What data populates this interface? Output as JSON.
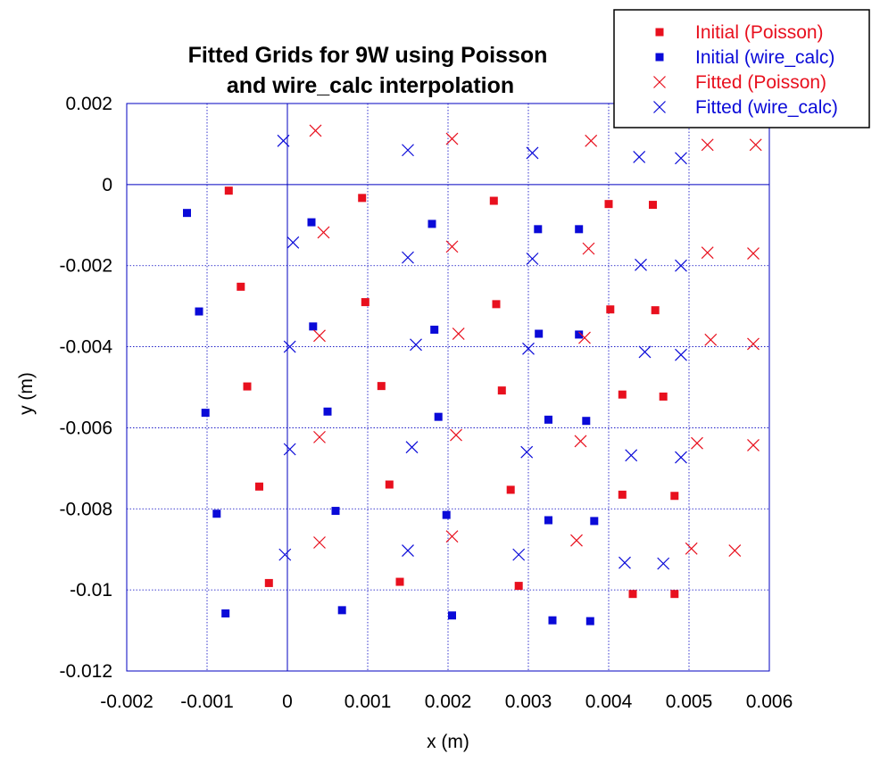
{
  "chart_data": {
    "type": "scatter",
    "title_lines": [
      "Fitted Grids for 9W using Poisson",
      "and wire_calc interpolation"
    ],
    "xlabel": "x (m)",
    "ylabel": "y (m)",
    "xlim": [
      -0.002,
      0.006
    ],
    "ylim": [
      -0.012,
      0.002
    ],
    "grid": true,
    "legend_position": "top-right",
    "x_ticks": [
      -0.002,
      -0.001,
      0,
      0.001,
      0.002,
      0.003,
      0.004,
      0.005,
      0.006
    ],
    "x_tick_labels": [
      "-0.002",
      "-0.001",
      "0",
      "0.001",
      "0.002",
      "0.003",
      "0.004",
      "0.005",
      "0.006"
    ],
    "y_ticks": [
      0.002,
      0,
      -0.002,
      -0.004,
      -0.006,
      -0.008,
      -0.01,
      -0.012
    ],
    "y_tick_labels": [
      "0.002",
      "0",
      "-0.002",
      "-0.004",
      "-0.006",
      "-0.008",
      "-0.01",
      "-0.012"
    ],
    "series": [
      {
        "name": "Initial (Poisson)",
        "marker": "square",
        "color": "#e8101e",
        "points": [
          [
            -0.00073,
            -0.00015
          ],
          [
            0.00093,
            -0.00033
          ],
          [
            0.00257,
            -0.0004
          ],
          [
            0.004,
            -0.00048
          ],
          [
            0.00455,
            -0.0005
          ],
          [
            -0.00058,
            -0.00252
          ],
          [
            0.00097,
            -0.0029
          ],
          [
            0.0026,
            -0.00295
          ],
          [
            0.00402,
            -0.00308
          ],
          [
            0.00458,
            -0.0031
          ],
          [
            -0.0005,
            -0.00498
          ],
          [
            0.00117,
            -0.00497
          ],
          [
            0.00267,
            -0.00508
          ],
          [
            0.00417,
            -0.00518
          ],
          [
            0.00468,
            -0.00523
          ],
          [
            -0.00035,
            -0.00745
          ],
          [
            0.00127,
            -0.0074
          ],
          [
            0.00278,
            -0.00753
          ],
          [
            0.00417,
            -0.00765
          ],
          [
            0.00482,
            -0.00768
          ],
          [
            -0.00023,
            -0.00983
          ],
          [
            0.0014,
            -0.0098
          ],
          [
            0.00288,
            -0.0099
          ],
          [
            0.0043,
            -0.0101
          ],
          [
            0.00482,
            -0.0101
          ]
        ]
      },
      {
        "name": "Initial (wire_calc)",
        "marker": "square",
        "color": "#0a0ad8",
        "points": [
          [
            -0.00125,
            -0.0007
          ],
          [
            0.0003,
            -0.00093
          ],
          [
            0.0018,
            -0.00097
          ],
          [
            0.00312,
            -0.0011
          ],
          [
            0.00363,
            -0.0011
          ],
          [
            -0.0011,
            -0.00313
          ],
          [
            0.00032,
            -0.0035
          ],
          [
            0.00183,
            -0.00358
          ],
          [
            0.00313,
            -0.00368
          ],
          [
            0.00363,
            -0.0037
          ],
          [
            -0.00102,
            -0.00563
          ],
          [
            0.0005,
            -0.0056
          ],
          [
            0.00188,
            -0.00573
          ],
          [
            0.00325,
            -0.0058
          ],
          [
            0.00372,
            -0.00583
          ],
          [
            -0.00088,
            -0.00812
          ],
          [
            0.0006,
            -0.00805
          ],
          [
            0.00198,
            -0.00815
          ],
          [
            0.00325,
            -0.00828
          ],
          [
            0.00382,
            -0.0083
          ],
          [
            -0.00077,
            -0.01058
          ],
          [
            0.00068,
            -0.0105
          ],
          [
            0.00205,
            -0.01063
          ],
          [
            0.0033,
            -0.01075
          ],
          [
            0.00377,
            -0.01077
          ]
        ]
      },
      {
        "name": "Fitted (Poisson)",
        "marker": "x",
        "color": "#e8101e",
        "points": [
          [
            0.00035,
            0.00133
          ],
          [
            0.00205,
            0.00113
          ],
          [
            0.00378,
            0.00108
          ],
          [
            0.00523,
            0.00098
          ],
          [
            0.00583,
            0.00098
          ],
          [
            0.00045,
            -0.00118
          ],
          [
            0.00205,
            -0.00153
          ],
          [
            0.00375,
            -0.00158
          ],
          [
            0.00523,
            -0.00168
          ],
          [
            0.0058,
            -0.0017
          ],
          [
            0.0004,
            -0.00373
          ],
          [
            0.00213,
            -0.00368
          ],
          [
            0.0037,
            -0.00378
          ],
          [
            0.00527,
            -0.00383
          ],
          [
            0.0058,
            -0.00393
          ],
          [
            0.0004,
            -0.00623
          ],
          [
            0.0021,
            -0.00618
          ],
          [
            0.00365,
            -0.00633
          ],
          [
            0.0051,
            -0.00638
          ],
          [
            0.0058,
            -0.00643
          ],
          [
            0.0004,
            -0.00883
          ],
          [
            0.00205,
            -0.00868
          ],
          [
            0.0036,
            -0.00878
          ],
          [
            0.00503,
            -0.00898
          ],
          [
            0.00557,
            -0.00903
          ]
        ]
      },
      {
        "name": "Fitted (wire_calc)",
        "marker": "x",
        "color": "#0a0ad8",
        "points": [
          [
            -5e-05,
            0.00108
          ],
          [
            0.0015,
            0.00085
          ],
          [
            0.00305,
            0.00078
          ],
          [
            0.00438,
            0.00068
          ],
          [
            0.0049,
            0.00065
          ],
          [
            7e-05,
            -0.00143
          ],
          [
            0.0015,
            -0.0018
          ],
          [
            0.00305,
            -0.00183
          ],
          [
            0.0044,
            -0.00198
          ],
          [
            0.0049,
            -0.002
          ],
          [
            3e-05,
            -0.004
          ],
          [
            0.0016,
            -0.00395
          ],
          [
            0.003,
            -0.00405
          ],
          [
            0.00445,
            -0.00413
          ],
          [
            0.0049,
            -0.0042
          ],
          [
            3e-05,
            -0.00653
          ],
          [
            0.00155,
            -0.00648
          ],
          [
            0.00298,
            -0.0066
          ],
          [
            0.00428,
            -0.00668
          ],
          [
            0.0049,
            -0.00673
          ],
          [
            -3e-05,
            -0.00913
          ],
          [
            0.0015,
            -0.00903
          ],
          [
            0.00288,
            -0.00913
          ],
          [
            0.0042,
            -0.00933
          ],
          [
            0.00468,
            -0.00935
          ]
        ]
      }
    ]
  }
}
